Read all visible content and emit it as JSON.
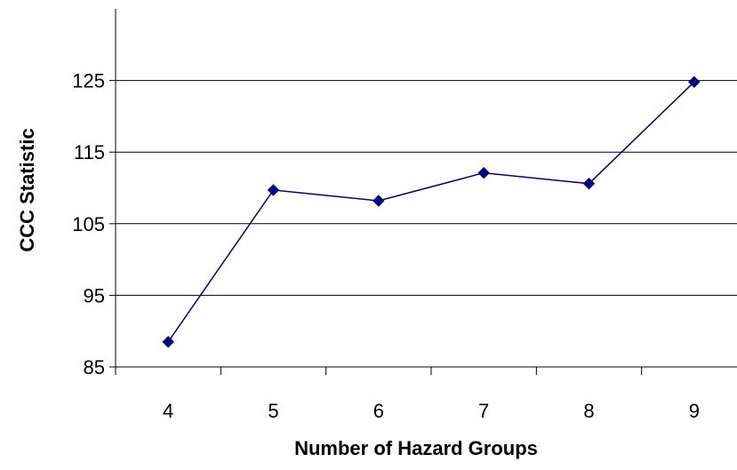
{
  "chart_data": {
    "type": "line",
    "title": "",
    "xlabel": "Number of Hazard Groups",
    "ylabel": "CCC Statistic",
    "categories": [
      "4",
      "5",
      "6",
      "7",
      "8",
      "9"
    ],
    "series": [
      {
        "values": [
          88.5,
          109.7,
          108.2,
          112.1,
          110.6,
          124.8
        ]
      }
    ],
    "ylim": [
      85,
      135
    ],
    "yticks": [
      85,
      95,
      105,
      115,
      125
    ],
    "ytick_labels": [
      "85",
      "95",
      "105",
      "115",
      "125"
    ],
    "grid": true,
    "legend": "none",
    "colors": {
      "line": "#000080",
      "marker": "#000080",
      "grid": "#000000",
      "axis": "#000000"
    },
    "marker_shape": "diamond"
  }
}
